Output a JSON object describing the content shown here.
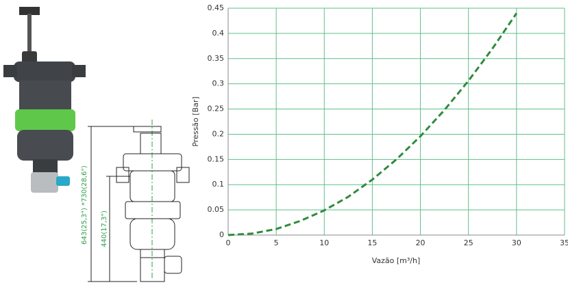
{
  "drawing": {
    "dim_total": "643(25,3\") *730(28,6\")",
    "dim_body": "440(17,3\")"
  },
  "chart_data": {
    "type": "line",
    "x_label": "Vazão [m³/h]",
    "y_label": "Pressão [Bar]",
    "x": [
      0,
      2.5,
      5,
      7.5,
      10,
      12.5,
      15,
      17.5,
      20,
      22.5,
      25,
      27.5,
      30
    ],
    "series": [
      {
        "color": "#2e8b3e",
        "values": [
          0,
          0.003,
          0.012,
          0.028,
          0.049,
          0.076,
          0.11,
          0.15,
          0.196,
          0.248,
          0.306,
          0.37,
          0.44
        ]
      }
    ],
    "xlim": [
      0,
      35
    ],
    "xticks": [
      0,
      5,
      10,
      15,
      20,
      25,
      30,
      35
    ],
    "ylim": [
      0,
      0.45
    ],
    "yticks": [
      0,
      0.05,
      0.1,
      0.15,
      0.2,
      0.25,
      0.3,
      0.35,
      0.4,
      0.45
    ],
    "grid": true,
    "grid_color": "#5cc08a"
  }
}
